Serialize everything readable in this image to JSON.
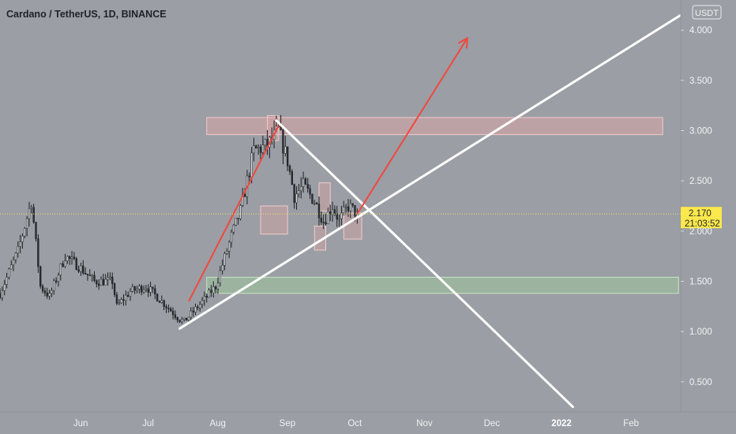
{
  "header": {
    "title": "Cardano / TetherUS, 1D, BINANCE"
  },
  "currency_badge": {
    "label": "USDT"
  },
  "last_price": {
    "value": "2.170",
    "countdown": "21:03:52"
  },
  "colors": {
    "background": "#9b9ea4",
    "candle_up": "#d8dde0",
    "candle_down": "#2a2d31",
    "trendline": "#ffffff",
    "arrow": "#f0483e",
    "resistance_zone": "#e6a6a6",
    "support_zone": "#9dcf9a",
    "price_badge": "#fbe84d"
  },
  "chart_data": {
    "type": "candlestick",
    "title": "Cardano / TetherUS, 1D, BINANCE",
    "xlabel": "",
    "ylabel": "",
    "y_ticks": [
      "4.000",
      "3.500",
      "3.000",
      "2.500",
      "2.000",
      "1.500",
      "1.000",
      "0.500"
    ],
    "y_tick_values": [
      4.0,
      3.5,
      3.0,
      2.5,
      2.0,
      1.5,
      1.0,
      0.5
    ],
    "x_ticks": [
      "Jun",
      "Jul",
      "Aug",
      "Sep",
      "Oct",
      "Nov",
      "Dec",
      "2022",
      "Feb"
    ],
    "x_tick_dates": [
      "2021-06-01",
      "2021-07-01",
      "2021-08-01",
      "2021-09-01",
      "2021-10-01",
      "2021-11-01",
      "2021-12-01",
      "2022-01-01",
      "2022-02-01"
    ],
    "xlim": [
      "2021-05-01",
      "2022-02-28"
    ],
    "ylim": [
      0.2,
      4.3
    ],
    "grid": false,
    "last_price": 2.17,
    "anchors": [
      {
        "date": "2021-05-01",
        "price": 1.38
      },
      {
        "date": "2021-05-09",
        "price": 1.8
      },
      {
        "date": "2021-05-15",
        "price": 2.3
      },
      {
        "date": "2021-05-19",
        "price": 1.45
      },
      {
        "date": "2021-05-23",
        "price": 1.35
      },
      {
        "date": "2021-05-30",
        "price": 1.75
      },
      {
        "date": "2021-06-05",
        "price": 1.65
      },
      {
        "date": "2021-06-12",
        "price": 1.5
      },
      {
        "date": "2021-06-20",
        "price": 1.5
      },
      {
        "date": "2021-06-22",
        "price": 1.25
      },
      {
        "date": "2021-06-28",
        "price": 1.4
      },
      {
        "date": "2021-07-05",
        "price": 1.45
      },
      {
        "date": "2021-07-12",
        "price": 1.3
      },
      {
        "date": "2021-07-20",
        "price": 1.12
      },
      {
        "date": "2021-07-22",
        "price": 1.1
      },
      {
        "date": "2021-07-31",
        "price": 1.32
      },
      {
        "date": "2021-08-05",
        "price": 1.45
      },
      {
        "date": "2021-08-12",
        "price": 1.95
      },
      {
        "date": "2021-08-16",
        "price": 2.2
      },
      {
        "date": "2021-08-22",
        "price": 2.8
      },
      {
        "date": "2021-08-28",
        "price": 2.85
      },
      {
        "date": "2021-09-02",
        "price": 3.0
      },
      {
        "date": "2021-09-06",
        "price": 2.7
      },
      {
        "date": "2021-09-09",
        "price": 2.35
      },
      {
        "date": "2021-09-13",
        "price": 2.45
      },
      {
        "date": "2021-09-18",
        "price": 2.3
      },
      {
        "date": "2021-09-22",
        "price": 2.1
      },
      {
        "date": "2021-09-26",
        "price": 2.25
      },
      {
        "date": "2021-09-29",
        "price": 2.1
      },
      {
        "date": "2021-10-03",
        "price": 2.25
      },
      {
        "date": "2021-10-07",
        "price": 2.17
      }
    ],
    "zones": [
      {
        "name": "resistance",
        "from": "2021-08-01",
        "to": "2022-02-20",
        "low": 2.96,
        "high": 3.13
      },
      {
        "name": "support",
        "from": "2021-08-01",
        "to": "2022-02-27",
        "low": 1.38,
        "high": 1.54
      }
    ],
    "highlight_boxes": [
      {
        "from": "2021-08-28",
        "to": "2021-09-02",
        "low": 2.9,
        "high": 3.15
      },
      {
        "from": "2021-08-25",
        "to": "2021-09-06",
        "low": 1.97,
        "high": 2.25
      },
      {
        "from": "2021-09-18",
        "to": "2021-09-23",
        "low": 1.81,
        "high": 2.05
      },
      {
        "from": "2021-09-20",
        "to": "2021-09-25",
        "low": 2.2,
        "high": 2.48
      },
      {
        "from": "2021-10-01",
        "to": "2021-10-09",
        "low": 1.92,
        "high": 2.18
      }
    ],
    "trendlines": [
      {
        "name": "rising-support",
        "from": {
          "date": "2021-07-20",
          "price": 1.03
        },
        "to": {
          "date": "2022-02-28",
          "price": 4.15
        }
      },
      {
        "name": "falling-resistance",
        "from": {
          "date": "2021-09-01",
          "price": 3.1
        },
        "to": {
          "date": "2022-01-11",
          "price": 0.25
        }
      }
    ],
    "arrows": [
      {
        "name": "projection-up",
        "from": {
          "date": "2021-10-07",
          "price": 2.17
        },
        "to": {
          "date": "2021-11-25",
          "price": 3.92
        }
      },
      {
        "name": "breakout-rally",
        "from": {
          "date": "2021-07-24",
          "price": 1.3
        },
        "to": {
          "date": "2021-09-02",
          "price": 3.05
        }
      }
    ]
  }
}
